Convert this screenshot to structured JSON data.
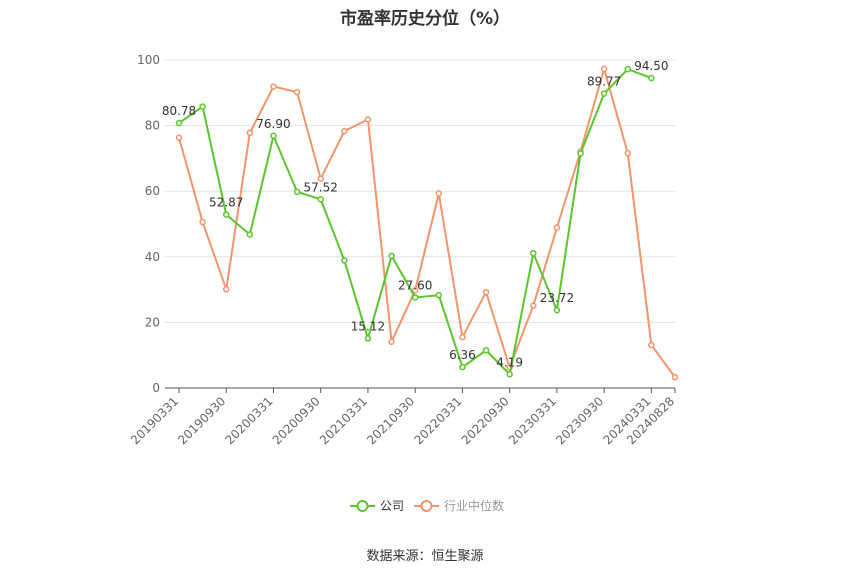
{
  "chart_data": {
    "type": "line",
    "title": "市盈率历史分位（%）",
    "source": "数据来源：恒生聚源",
    "xlabel": "",
    "ylabel": "",
    "ylim": [
      0,
      100
    ],
    "y_ticks": [
      "0",
      "20",
      "40",
      "60",
      "80",
      "100"
    ],
    "grid": true,
    "legend_position": "bottom",
    "x_tick_labels": [
      "20190331",
      "20190930",
      "20200331",
      "20200930",
      "20210331",
      "20210930",
      "20220331",
      "20220930",
      "20230331",
      "20230930",
      "20240331",
      "20240828"
    ],
    "x": [
      "20190331",
      "20190630",
      "20190930",
      "20191231",
      "20200331",
      "20200630",
      "20200930",
      "20201231",
      "20210331",
      "20210630",
      "20210930",
      "20211231",
      "20220331",
      "20220630",
      "20220930",
      "20221231",
      "20230331",
      "20230630",
      "20230930",
      "20231231",
      "20240331",
      "20240828"
    ],
    "series": [
      {
        "name": "公司",
        "color": "#5ac52e",
        "values": [
          80.78,
          85.8,
          52.87,
          46.8,
          76.9,
          59.8,
          57.52,
          38.9,
          15.12,
          40.3,
          27.6,
          28.3,
          6.36,
          11.5,
          4.19,
          41.1,
          23.72,
          71.5,
          89.77,
          97.2,
          94.5,
          null
        ],
        "labels": [
          "80.78",
          "",
          "52.87",
          "",
          "76.90",
          "",
          "57.52",
          "",
          "15.12",
          "",
          "27.60",
          "",
          "6.36",
          "",
          "4.19",
          "",
          "23.72",
          "",
          "89.77",
          "",
          "94.50",
          ""
        ]
      },
      {
        "name": "行业中位数",
        "color": "#f2956b",
        "values": [
          76.3,
          50.6,
          30.1,
          77.8,
          91.9,
          90.2,
          63.8,
          78.3,
          81.9,
          14.1,
          29.8,
          59.3,
          15.5,
          29.2,
          6.3,
          25.1,
          48.9,
          72.1,
          97.3,
          71.6,
          13.1,
          3.3
        ],
        "labels": []
      }
    ]
  }
}
